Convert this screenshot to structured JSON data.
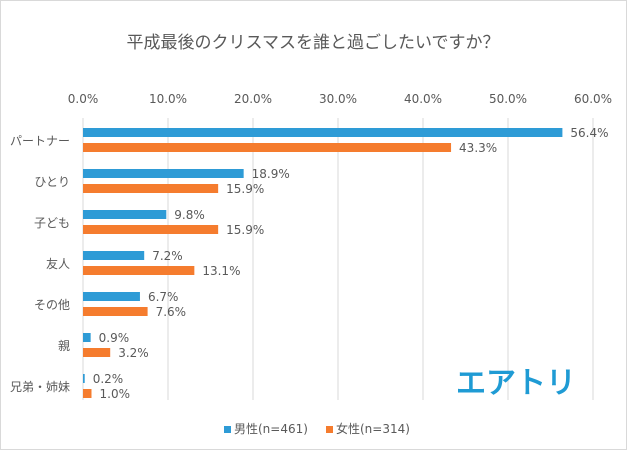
{
  "chart_data": {
    "type": "bar",
    "orientation": "horizontal",
    "title": "平成最後のクリスマスを誰と過ごしたいですか？",
    "categories": [
      "パートナー",
      "ひとり",
      "子ども",
      "友人",
      "その他",
      "親",
      "兄弟・姉妹"
    ],
    "series": [
      {
        "name": "男性(n=461)",
        "color": "#2e9bd6",
        "values": [
          56.4,
          18.9,
          9.8,
          7.2,
          6.7,
          0.9,
          0.2
        ],
        "labels": [
          "56.4%",
          "18.9%",
          "9.8%",
          "7.2%",
          "6.7%",
          "0.9%",
          "0.2%"
        ]
      },
      {
        "name": "女性(n=314)",
        "color": "#f57c2e",
        "values": [
          43.3,
          15.9,
          15.9,
          13.1,
          7.6,
          3.2,
          1.0
        ],
        "labels": [
          "43.3%",
          "15.9%",
          "15.9%",
          "13.1%",
          "7.6%",
          "3.2%",
          "1.0%"
        ]
      }
    ],
    "xlim": [
      0,
      60
    ],
    "xticks": [
      0,
      10,
      20,
      30,
      40,
      50,
      60
    ],
    "xtick_labels": [
      "0.0%",
      "10.0%",
      "20.0%",
      "30.0%",
      "40.0%",
      "50.0%",
      "60.0%"
    ],
    "grid": true,
    "legend_position": "bottom"
  },
  "logo": {
    "text": "エアトリ",
    "color": "#1f9bd4"
  }
}
